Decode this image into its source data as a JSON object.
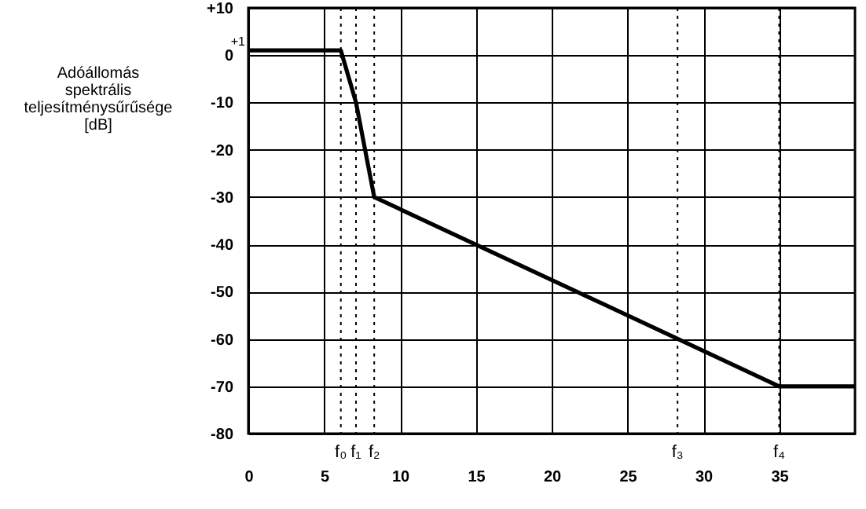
{
  "chart_data": {
    "type": "line",
    "ylabel": "Adóállomás spektrális teljesítménysűrűsége [dB]",
    "xlim": [
      0,
      40
    ],
    "xticks": [
      0,
      5,
      10,
      15,
      20,
      25,
      30,
      35
    ],
    "ylim": [
      -80,
      10
    ],
    "yticks": [
      {
        "value": 10,
        "label": "+10"
      },
      0,
      -10,
      -20,
      -30,
      -40,
      -50,
      -60,
      -70,
      -80
    ],
    "grid": true,
    "series": [
      {
        "color": "#000000",
        "x": [
          0,
          6.1,
          7.1,
          8.3,
          35,
          40
        ],
        "values": [
          1,
          1,
          -10,
          -30,
          -70,
          -70
        ]
      }
    ],
    "ref_lines": [
      {
        "axis": "x",
        "value": 6.1,
        "label": "f₀",
        "line_style": "dotted",
        "color": "#000000"
      },
      {
        "axis": "x",
        "value": 7.1,
        "label": "f₁",
        "line_style": "dotted",
        "color": "#000000"
      },
      {
        "axis": "x",
        "value": 8.3,
        "label": "f₂",
        "line_style": "dotted",
        "color": "#000000"
      },
      {
        "axis": "x",
        "value": 28.3,
        "label": "f₃",
        "line_style": "dotted",
        "color": "#000000"
      },
      {
        "axis": "x",
        "value": 35,
        "label": "f₄",
        "line_style": "dotted",
        "color": "#000000"
      }
    ],
    "annotations": [
      {
        "text": "+1",
        "x": 0,
        "y": 1
      }
    ]
  }
}
